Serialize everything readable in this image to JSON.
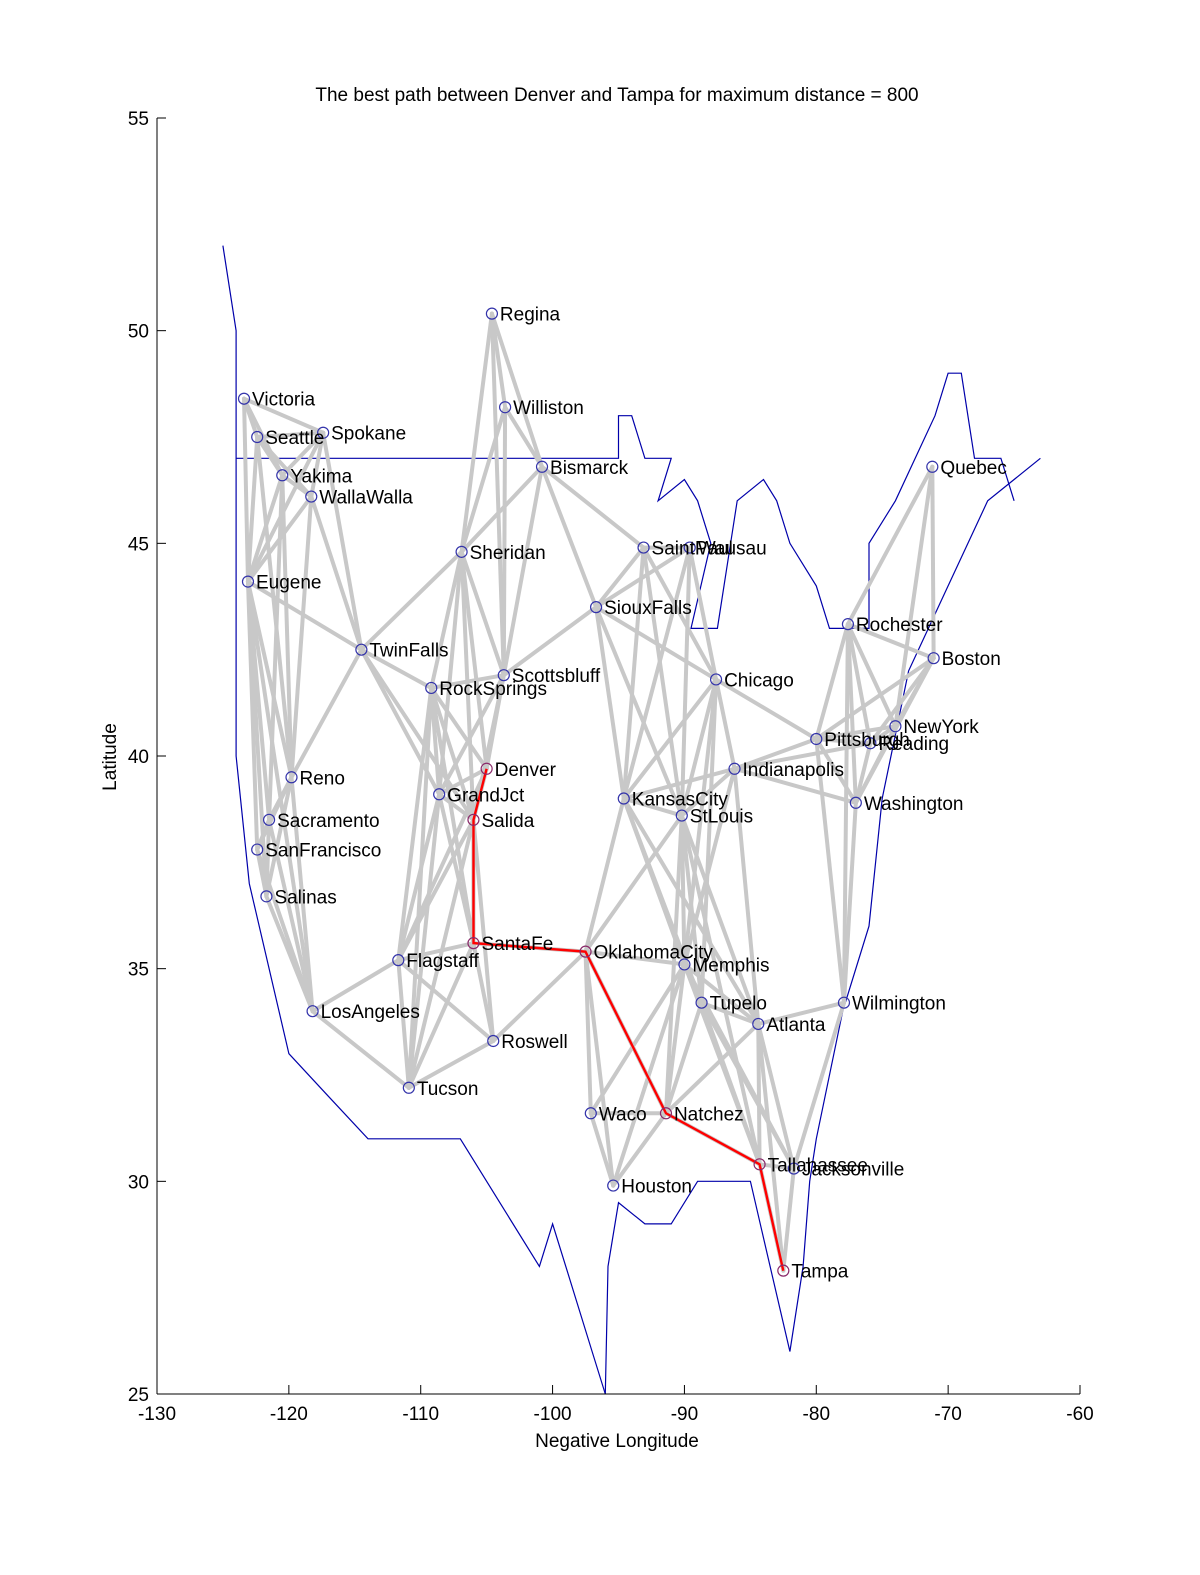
{
  "chart_data": {
    "type": "scatter",
    "title": "The best path between Denver and Tampa for maximum distance = 800",
    "xlabel": "Negative Longitude",
    "ylabel": "Latitude",
    "xlim": [
      -130,
      -60
    ],
    "ylim": [
      25,
      55
    ],
    "xticks": [
      -130,
      -120,
      -110,
      -100,
      -90,
      -80,
      -70,
      -60
    ],
    "yticks": [
      25,
      30,
      35,
      40,
      45,
      50,
      55
    ],
    "grid": false,
    "colors": {
      "graph_edges": "#c8c8c8",
      "best_path": "#ff0000",
      "outline": "#0000aa",
      "markers": "#3333aa"
    },
    "cities": [
      {
        "name": "Victoria",
        "x": -123.4,
        "y": 48.4
      },
      {
        "name": "Seattle",
        "x": -122.4,
        "y": 47.5
      },
      {
        "name": "Spokane",
        "x": -117.4,
        "y": 47.6
      },
      {
        "name": "Yakima",
        "x": -120.5,
        "y": 46.6
      },
      {
        "name": "WallaWalla",
        "x": -118.3,
        "y": 46.1
      },
      {
        "name": "Eugene",
        "x": -123.1,
        "y": 44.1
      },
      {
        "name": "TwinFalls",
        "x": -114.5,
        "y": 42.5
      },
      {
        "name": "Reno",
        "x": -119.8,
        "y": 39.5
      },
      {
        "name": "Sacramento",
        "x": -121.5,
        "y": 38.5
      },
      {
        "name": "SanFrancisco",
        "x": -122.4,
        "y": 37.8
      },
      {
        "name": "Salinas",
        "x": -121.7,
        "y": 36.7
      },
      {
        "name": "LosAngeles",
        "x": -118.2,
        "y": 34.0
      },
      {
        "name": "Regina",
        "x": -104.6,
        "y": 50.4
      },
      {
        "name": "Williston",
        "x": -103.6,
        "y": 48.2
      },
      {
        "name": "Bismarck",
        "x": -100.8,
        "y": 46.8
      },
      {
        "name": "Sheridan",
        "x": -106.9,
        "y": 44.8
      },
      {
        "name": "RockSprings",
        "x": -109.2,
        "y": 41.6
      },
      {
        "name": "Scottsbluff",
        "x": -103.7,
        "y": 41.9
      },
      {
        "name": "Denver",
        "x": -105.0,
        "y": 39.7
      },
      {
        "name": "GrandJct",
        "x": -108.6,
        "y": 39.1
      },
      {
        "name": "Salida",
        "x": -106.0,
        "y": 38.5
      },
      {
        "name": "SantaFe",
        "x": -106.0,
        "y": 35.6
      },
      {
        "name": "Flagstaff",
        "x": -111.7,
        "y": 35.2
      },
      {
        "name": "Tucson",
        "x": -110.9,
        "y": 32.2
      },
      {
        "name": "Roswell",
        "x": -104.5,
        "y": 33.3
      },
      {
        "name": "SaintPaul",
        "x": -93.1,
        "y": 44.9
      },
      {
        "name": "Wausau",
        "x": -89.6,
        "y": 44.9
      },
      {
        "name": "SiouxFalls",
        "x": -96.7,
        "y": 43.5
      },
      {
        "name": "Chicago",
        "x": -87.6,
        "y": 41.8
      },
      {
        "name": "KansasCity",
        "x": -94.6,
        "y": 39.0
      },
      {
        "name": "StLouis",
        "x": -90.2,
        "y": 38.6
      },
      {
        "name": "Indianapolis",
        "x": -86.2,
        "y": 39.7
      },
      {
        "name": "OklahomaCity",
        "x": -97.5,
        "y": 35.4
      },
      {
        "name": "Memphis",
        "x": -90.0,
        "y": 35.1
      },
      {
        "name": "Tupelo",
        "x": -88.7,
        "y": 34.2
      },
      {
        "name": "Atlanta",
        "x": -84.4,
        "y": 33.7
      },
      {
        "name": "Waco",
        "x": -97.1,
        "y": 31.6
      },
      {
        "name": "Natchez",
        "x": -91.4,
        "y": 31.6
      },
      {
        "name": "Houston",
        "x": -95.4,
        "y": 29.9
      },
      {
        "name": "Tallahassee",
        "x": -84.3,
        "y": 30.4
      },
      {
        "name": "Jacksonville",
        "x": -81.7,
        "y": 30.3
      },
      {
        "name": "Tampa",
        "x": -82.5,
        "y": 27.9
      },
      {
        "name": "Pittsburgh",
        "x": -80.0,
        "y": 40.4
      },
      {
        "name": "NewYork",
        "x": -74.0,
        "y": 40.7
      },
      {
        "name": "Reading",
        "x": -75.9,
        "y": 40.3
      },
      {
        "name": "Washington",
        "x": -77.0,
        "y": 38.9
      },
      {
        "name": "Rochester",
        "x": -77.6,
        "y": 43.1
      },
      {
        "name": "Boston",
        "x": -71.1,
        "y": 42.3
      },
      {
        "name": "Quebec",
        "x": -71.2,
        "y": 46.8
      },
      {
        "name": "Wilmington",
        "x": -77.9,
        "y": 34.2
      }
    ],
    "edges": [
      [
        "Victoria",
        "Seattle"
      ],
      [
        "Victoria",
        "Spokane"
      ],
      [
        "Victoria",
        "Yakima"
      ],
      [
        "Victoria",
        "Eugene"
      ],
      [
        "Seattle",
        "Spokane"
      ],
      [
        "Seattle",
        "Yakima"
      ],
      [
        "Seattle",
        "WallaWalla"
      ],
      [
        "Seattle",
        "Eugene"
      ],
      [
        "Seattle",
        "Reno"
      ],
      [
        "Spokane",
        "Yakima"
      ],
      [
        "Spokane",
        "WallaWalla"
      ],
      [
        "Spokane",
        "Eugene"
      ],
      [
        "Spokane",
        "TwinFalls"
      ],
      [
        "Yakima",
        "WallaWalla"
      ],
      [
        "Yakima",
        "Eugene"
      ],
      [
        "Yakima",
        "Reno"
      ],
      [
        "Yakima",
        "Sacramento"
      ],
      [
        "WallaWalla",
        "Eugene"
      ],
      [
        "WallaWalla",
        "TwinFalls"
      ],
      [
        "WallaWalla",
        "Reno"
      ],
      [
        "Eugene",
        "TwinFalls"
      ],
      [
        "Eugene",
        "Reno"
      ],
      [
        "Eugene",
        "Sacramento"
      ],
      [
        "Eugene",
        "SanFrancisco"
      ],
      [
        "Eugene",
        "Salinas"
      ],
      [
        "Eugene",
        "LosAngeles"
      ],
      [
        "TwinFalls",
        "Reno"
      ],
      [
        "TwinFalls",
        "Sheridan"
      ],
      [
        "TwinFalls",
        "GrandJct"
      ],
      [
        "TwinFalls",
        "Salida"
      ],
      [
        "TwinFalls",
        "RockSprings"
      ],
      [
        "Reno",
        "Sacramento"
      ],
      [
        "Reno",
        "SanFrancisco"
      ],
      [
        "Reno",
        "Salinas"
      ],
      [
        "Reno",
        "LosAngeles"
      ],
      [
        "Sacramento",
        "SanFrancisco"
      ],
      [
        "Sacramento",
        "Salinas"
      ],
      [
        "Sacramento",
        "LosAngeles"
      ],
      [
        "SanFrancisco",
        "Salinas"
      ],
      [
        "SanFrancisco",
        "LosAngeles"
      ],
      [
        "Salinas",
        "LosAngeles"
      ],
      [
        "LosAngeles",
        "Flagstaff"
      ],
      [
        "LosAngeles",
        "Tucson"
      ],
      [
        "Regina",
        "Williston"
      ],
      [
        "Regina",
        "Bismarck"
      ],
      [
        "Regina",
        "Sheridan"
      ],
      [
        "Regina",
        "Scottsbluff"
      ],
      [
        "Williston",
        "Bismarck"
      ],
      [
        "Williston",
        "Sheridan"
      ],
      [
        "Williston",
        "Scottsbluff"
      ],
      [
        "Bismarck",
        "Sheridan"
      ],
      [
        "Bismarck",
        "SiouxFalls"
      ],
      [
        "Bismarck",
        "SaintPaul"
      ],
      [
        "Bismarck",
        "Scottsbluff"
      ],
      [
        "Sheridan",
        "RockSprings"
      ],
      [
        "Sheridan",
        "Scottsbluff"
      ],
      [
        "Sheridan",
        "Denver"
      ],
      [
        "Sheridan",
        "GrandJct"
      ],
      [
        "Sheridan",
        "Salida"
      ],
      [
        "RockSprings",
        "Scottsbluff"
      ],
      [
        "RockSprings",
        "Denver"
      ],
      [
        "RockSprings",
        "GrandJct"
      ],
      [
        "RockSprings",
        "Salida"
      ],
      [
        "RockSprings",
        "Flagstaff"
      ],
      [
        "RockSprings",
        "SantaFe"
      ],
      [
        "RockSprings",
        "Tucson"
      ],
      [
        "Scottsbluff",
        "Denver"
      ],
      [
        "Scottsbluff",
        "SiouxFalls"
      ],
      [
        "Scottsbluff",
        "GrandJct"
      ],
      [
        "Scottsbluff",
        "Salida"
      ],
      [
        "Denver",
        "GrandJct"
      ],
      [
        "Denver",
        "Salida"
      ],
      [
        "Denver",
        "Flagstaff"
      ],
      [
        "GrandJct",
        "Salida"
      ],
      [
        "GrandJct",
        "Flagstaff"
      ],
      [
        "GrandJct",
        "Tucson"
      ],
      [
        "GrandJct",
        "SantaFe"
      ],
      [
        "Salida",
        "SantaFe"
      ],
      [
        "Salida",
        "Flagstaff"
      ],
      [
        "Salida",
        "Roswell"
      ],
      [
        "Salida",
        "Tucson"
      ],
      [
        "SantaFe",
        "Flagstaff"
      ],
      [
        "SantaFe",
        "Tucson"
      ],
      [
        "SantaFe",
        "Roswell"
      ],
      [
        "SantaFe",
        "OklahomaCity"
      ],
      [
        "Flagstaff",
        "Tucson"
      ],
      [
        "Flagstaff",
        "Roswell"
      ],
      [
        "Tucson",
        "Roswell"
      ],
      [
        "Roswell",
        "OklahomaCity"
      ],
      [
        "SaintPaul",
        "Wausau"
      ],
      [
        "SaintPaul",
        "SiouxFalls"
      ],
      [
        "SaintPaul",
        "KansasCity"
      ],
      [
        "SaintPaul",
        "StLouis"
      ],
      [
        "SaintPaul",
        "Chicago"
      ],
      [
        "Wausau",
        "SiouxFalls"
      ],
      [
        "Wausau",
        "Chicago"
      ],
      [
        "Wausau",
        "KansasCity"
      ],
      [
        "Wausau",
        "StLouis"
      ],
      [
        "SiouxFalls",
        "Chicago"
      ],
      [
        "SiouxFalls",
        "KansasCity"
      ],
      [
        "SiouxFalls",
        "StLouis"
      ],
      [
        "Chicago",
        "KansasCity"
      ],
      [
        "Chicago",
        "StLouis"
      ],
      [
        "Chicago",
        "Indianapolis"
      ],
      [
        "Chicago",
        "Pittsburgh"
      ],
      [
        "Chicago",
        "Memphis"
      ],
      [
        "Chicago",
        "Tupelo"
      ],
      [
        "KansasCity",
        "StLouis"
      ],
      [
        "KansasCity",
        "Indianapolis"
      ],
      [
        "KansasCity",
        "OklahomaCity"
      ],
      [
        "KansasCity",
        "Memphis"
      ],
      [
        "KansasCity",
        "Tupelo"
      ],
      [
        "KansasCity",
        "Atlanta"
      ],
      [
        "StLouis",
        "Indianapolis"
      ],
      [
        "StLouis",
        "Memphis"
      ],
      [
        "StLouis",
        "Tupelo"
      ],
      [
        "StLouis",
        "Natchez"
      ],
      [
        "StLouis",
        "Atlanta"
      ],
      [
        "StLouis",
        "Tallahassee"
      ],
      [
        "StLouis",
        "OklahomaCity"
      ],
      [
        "Indianapolis",
        "Pittsburgh"
      ],
      [
        "Indianapolis",
        "Memphis"
      ],
      [
        "Indianapolis",
        "Atlanta"
      ],
      [
        "Indianapolis",
        "Washington"
      ],
      [
        "Indianapolis",
        "Reading"
      ],
      [
        "OklahomaCity",
        "Memphis"
      ],
      [
        "OklahomaCity",
        "Waco"
      ],
      [
        "OklahomaCity",
        "Houston"
      ],
      [
        "OklahomaCity",
        "Natchez"
      ],
      [
        "Memphis",
        "Tupelo"
      ],
      [
        "Memphis",
        "Atlanta"
      ],
      [
        "Memphis",
        "Natchez"
      ],
      [
        "Memphis",
        "Houston"
      ],
      [
        "Memphis",
        "Waco"
      ],
      [
        "Memphis",
        "Tallahassee"
      ],
      [
        "Memphis",
        "Jacksonville"
      ],
      [
        "Tupelo",
        "Atlanta"
      ],
      [
        "Tupelo",
        "Natchez"
      ],
      [
        "Tupelo",
        "Tallahassee"
      ],
      [
        "Tupelo",
        "Jacksonville"
      ],
      [
        "Atlanta",
        "Tallahassee"
      ],
      [
        "Atlanta",
        "Jacksonville"
      ],
      [
        "Atlanta",
        "Tampa"
      ],
      [
        "Atlanta",
        "Natchez"
      ],
      [
        "Atlanta",
        "Wilmington"
      ],
      [
        "Waco",
        "Houston"
      ],
      [
        "Waco",
        "Natchez"
      ],
      [
        "Houston",
        "Natchez"
      ],
      [
        "Natchez",
        "Tallahassee"
      ],
      [
        "Tallahassee",
        "Jacksonville"
      ],
      [
        "Tallahassee",
        "Tampa"
      ],
      [
        "Jacksonville",
        "Tampa"
      ],
      [
        "Jacksonville",
        "Wilmington"
      ],
      [
        "Pittsburgh",
        "NewYork"
      ],
      [
        "Pittsburgh",
        "Reading"
      ],
      [
        "Pittsburgh",
        "Washington"
      ],
      [
        "Pittsburgh",
        "Rochester"
      ],
      [
        "Pittsburgh",
        "Boston"
      ],
      [
        "Pittsburgh",
        "Wilmington"
      ],
      [
        "NewYork",
        "Reading"
      ],
      [
        "NewYork",
        "Washington"
      ],
      [
        "NewYork",
        "Rochester"
      ],
      [
        "NewYork",
        "Boston"
      ],
      [
        "NewYork",
        "Quebec"
      ],
      [
        "Reading",
        "Washington"
      ],
      [
        "Reading",
        "Rochester"
      ],
      [
        "Reading",
        "Boston"
      ],
      [
        "Washington",
        "Rochester"
      ],
      [
        "Washington",
        "Boston"
      ],
      [
        "Washington",
        "Wilmington"
      ],
      [
        "Rochester",
        "Boston"
      ],
      [
        "Rochester",
        "Quebec"
      ],
      [
        "Rochester",
        "Wilmington"
      ],
      [
        "Boston",
        "Quebec"
      ]
    ],
    "best_path": [
      "Denver",
      "Salida",
      "SantaFe",
      "OklahomaCity",
      "Natchez",
      "Tallahassee",
      "Tampa"
    ],
    "outline": [
      [
        -125,
        52
      ],
      [
        -124,
        50
      ],
      [
        -124,
        40
      ],
      [
        -123,
        37
      ],
      [
        -120,
        33
      ],
      [
        -117,
        32
      ],
      [
        -114,
        31
      ],
      [
        -110,
        31
      ],
      [
        -107,
        31
      ],
      [
        -104,
        29.5
      ],
      [
        -101,
        28
      ],
      [
        -100,
        29
      ],
      [
        -99,
        28
      ],
      [
        -97,
        26
      ],
      [
        -96,
        25
      ],
      "break",
      [
        -96,
        25
      ],
      [
        -95.8,
        28
      ],
      [
        -95,
        29.5
      ],
      [
        -93,
        29
      ],
      [
        -91,
        29
      ],
      [
        -89,
        30
      ],
      [
        -87.5,
        30
      ],
      [
        -85,
        30
      ],
      [
        -83.5,
        28
      ],
      [
        -82,
        26
      ],
      [
        -81,
        28
      ],
      [
        -80.5,
        30
      ],
      [
        -80,
        31
      ],
      [
        -78,
        34
      ],
      [
        -76,
        36
      ],
      [
        -75,
        39
      ],
      [
        -73,
        42
      ],
      [
        -70,
        44
      ],
      [
        -67,
        46
      ],
      [
        -63,
        47
      ]
    ],
    "border": [
      [
        -124,
        47
      ],
      [
        -95,
        47
      ],
      [
        -95,
        48
      ],
      [
        -94,
        48
      ],
      [
        -93,
        47
      ],
      [
        -91,
        47
      ],
      [
        -92,
        46
      ],
      [
        -90,
        46.5
      ],
      [
        -89,
        46
      ],
      [
        -88,
        45
      ],
      [
        -89.5,
        43
      ],
      [
        -87.5,
        43
      ],
      [
        -86.5,
        45
      ],
      [
        -86,
        46
      ],
      [
        -84,
        46.5
      ],
      [
        -83,
        46
      ],
      [
        -82,
        45
      ],
      [
        -80,
        44
      ],
      [
        -79,
        43
      ],
      [
        -76,
        43
      ],
      [
        -76,
        45
      ],
      [
        -74,
        46
      ],
      [
        -71,
        48
      ],
      [
        -70,
        49
      ],
      [
        -69,
        49
      ],
      [
        -68,
        47
      ],
      [
        -66,
        47
      ],
      [
        -65,
        46
      ]
    ]
  }
}
